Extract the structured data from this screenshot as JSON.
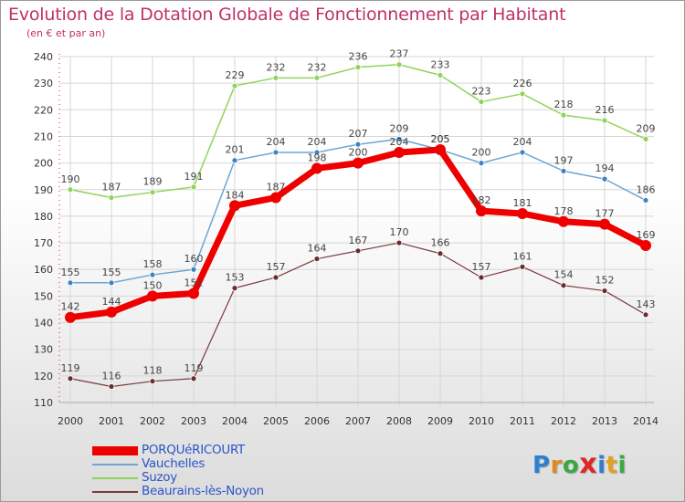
{
  "chart_data": {
    "type": "line",
    "title": "Evolution de la Dotation Globale de Fonctionnement par Habitant",
    "subtitle": "(en € et par an)",
    "xlabel": "",
    "ylabel": "",
    "ylim": [
      110,
      240
    ],
    "yticks": [
      110,
      120,
      130,
      140,
      150,
      160,
      170,
      180,
      190,
      200,
      210,
      220,
      230,
      240
    ],
    "categories": [
      "2000",
      "2001",
      "2002",
      "2003",
      "2004",
      "2005",
      "2006",
      "2007",
      "2008",
      "2009",
      "2010",
      "2011",
      "2012",
      "2013",
      "2014"
    ],
    "grid": true,
    "legend_position": "bottom-left",
    "series": [
      {
        "name": "Suzoy",
        "color": "#8fd35a",
        "dot": "#8fd35a",
        "width": 1.5,
        "r": 3,
        "values": [
          190,
          187,
          189,
          191,
          229,
          232,
          232,
          236,
          237,
          233,
          223,
          226,
          218,
          216,
          209
        ]
      },
      {
        "name": "Vauchelles",
        "color": "#6ca6d2",
        "dot": "#3e82c2",
        "width": 1.5,
        "r": 3,
        "values": [
          155,
          155,
          158,
          160,
          201,
          204,
          204,
          207,
          209,
          205,
          200,
          204,
          197,
          194,
          186
        ]
      },
      {
        "name": "Beaurains-lès-Noyon",
        "color": "#7a3a3e",
        "dot": "#6a2a2e",
        "width": 1.2,
        "r": 3,
        "values": [
          119,
          116,
          118,
          119,
          153,
          157,
          164,
          167,
          170,
          166,
          157,
          161,
          154,
          152,
          143
        ]
      },
      {
        "name": "PORQUéRICOURT",
        "color": "#ee0000",
        "dot": "#ee0000",
        "width": 7,
        "r": 6,
        "values": [
          142,
          144,
          150,
          151,
          184,
          187,
          198,
          200,
          204,
          205,
          182,
          181,
          178,
          177,
          169
        ]
      }
    ]
  },
  "legend": [
    {
      "label": "PORQUéRICOURT",
      "color": "#ee0000",
      "thickness": 10
    },
    {
      "label": "Vauchelles",
      "color": "#6ca6d2",
      "thickness": 2
    },
    {
      "label": "Suzoy",
      "color": "#8fd35a",
      "thickness": 2
    },
    {
      "label": "Beaurains-lès-Noyon",
      "color": "#7a3a3e",
      "thickness": 2
    }
  ],
  "logo": {
    "letters": [
      "P",
      "r",
      "o",
      "x",
      "i",
      "t",
      "i"
    ],
    "colors": [
      "#2e7fd0",
      "#e08a1e",
      "#3aa840",
      "#e02626",
      "#2e7fd0",
      "#e0a21e",
      "#3aa840"
    ]
  }
}
